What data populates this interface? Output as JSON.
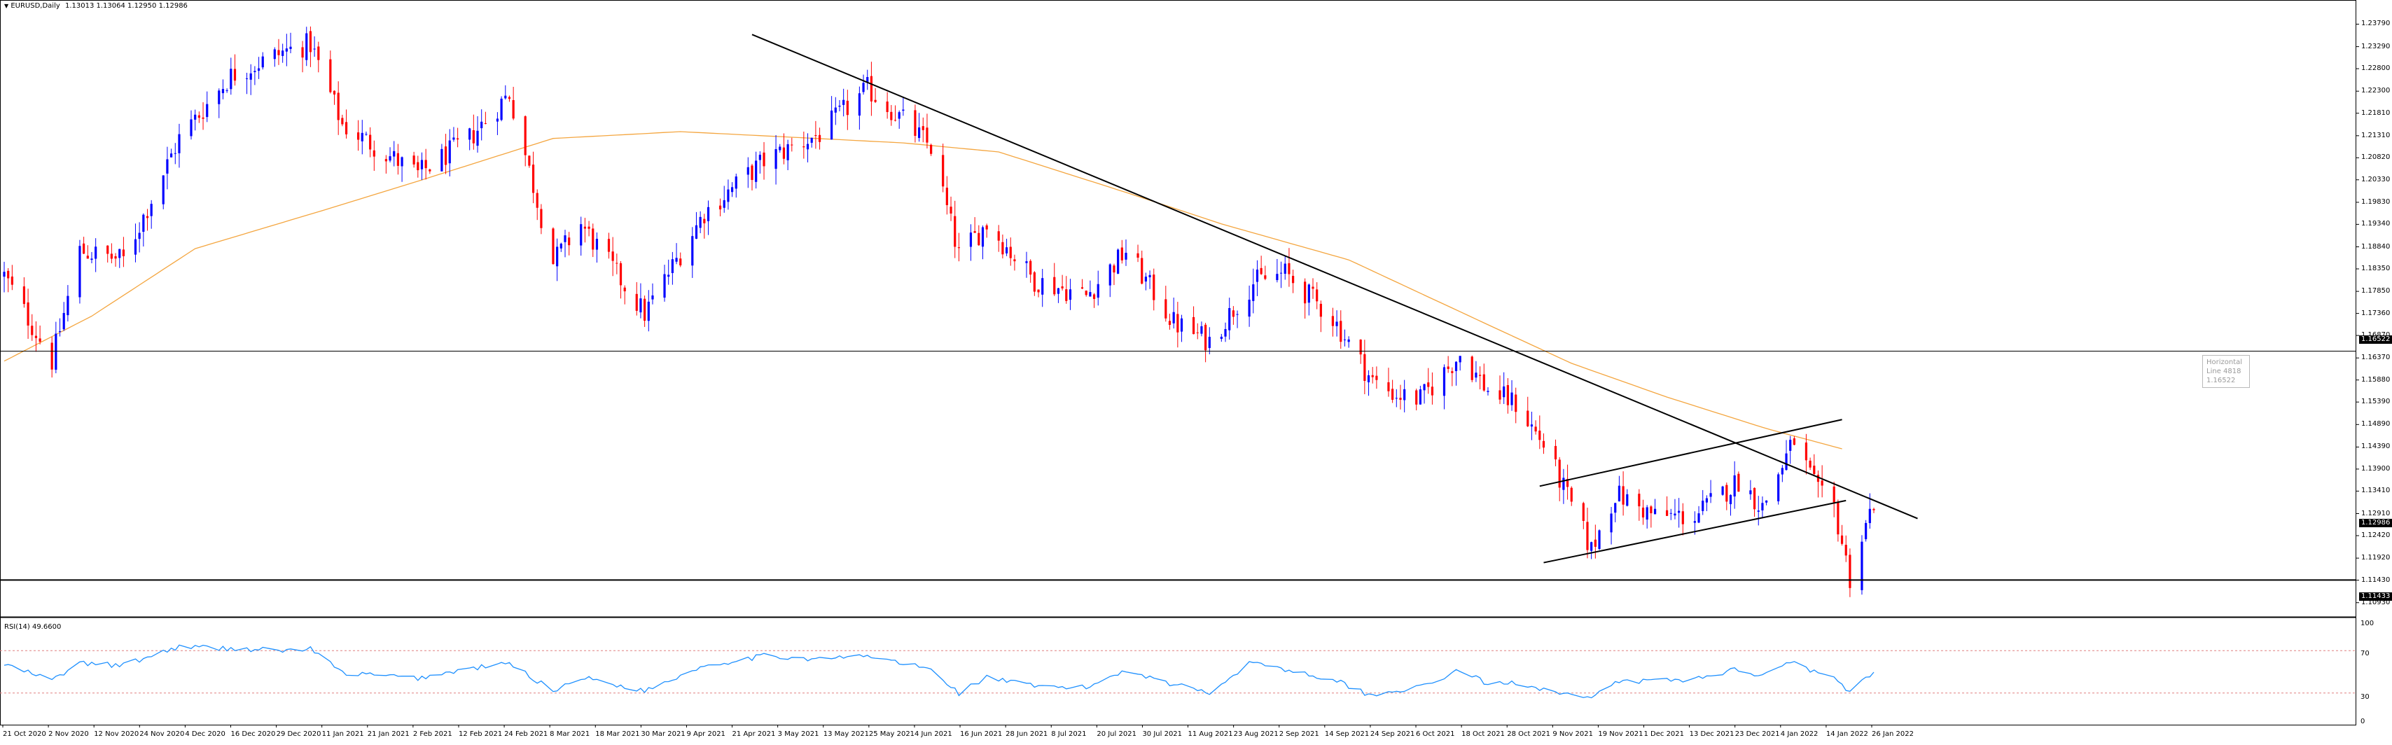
{
  "header": {
    "symbol_menu": "▼",
    "title": "EURUSD,Daily",
    "ohlc": "1.13013 1.13064 1.12950 1.12986"
  },
  "price_axis": {
    "labels": [
      "1.23790",
      "1.23290",
      "1.22800",
      "1.22300",
      "1.21810",
      "1.21310",
      "1.20820",
      "1.20330",
      "1.19830",
      "1.19340",
      "1.18840",
      "1.18350",
      "1.17850",
      "1.17360",
      "1.16870",
      "1.16370",
      "1.15880",
      "1.15390",
      "1.14890",
      "1.14390",
      "1.13900",
      "1.13410",
      "1.12910",
      "1.12420",
      "1.11920",
      "1.11430",
      "1.10930"
    ],
    "hline_upper_tag": "1.16522",
    "current_price_tag": "1.12986",
    "hline_lower_tag": "1.11433"
  },
  "rsi_panel": {
    "title": "RSI(14) 49.6600",
    "axis_labels": {
      "top": "100",
      "upper": "70",
      "lower": "30",
      "bottom": "0"
    }
  },
  "time_axis": {
    "labels": [
      "21 Oct 2020",
      "2 Nov 2020",
      "12 Nov 2020",
      "24 Nov 2020",
      "4 Dec 2020",
      "16 Dec 2020",
      "29 Dec 2020",
      "11 Jan 2021",
      "21 Jan 2021",
      "2 Feb 2021",
      "12 Feb 2021",
      "24 Feb 2021",
      "8 Mar 2021",
      "18 Mar 2021",
      "30 Mar 2021",
      "9 Apr 2021",
      "21 Apr 2021",
      "3 May 2021",
      "13 May 2021",
      "25 May 2021",
      "4 Jun 2021",
      "16 Jun 2021",
      "28 Jun 2021",
      "8 Jul 2021",
      "20 Jul 2021",
      "30 Jul 2021",
      "11 Aug 2021",
      "23 Aug 2021",
      "2 Sep 2021",
      "14 Sep 2021",
      "24 Sep 2021",
      "6 Oct 2021",
      "18 Oct 2021",
      "28 Oct 2021",
      "9 Nov 2021",
      "19 Nov 2021",
      "1 Dec 2021",
      "13 Dec 2021",
      "23 Dec 2021",
      "4 Jan 2022",
      "14 Jan 2022",
      "26 Jan 2022"
    ]
  },
  "tooltip": {
    "line1": "Horizontal Line 4818",
    "line2": "1.16522"
  },
  "colors": {
    "bull": "#0000ff",
    "bear": "#ff0000",
    "moving_average": "#f4a640",
    "rsi_line": "#1e90ff",
    "rsi_levels": "#e08080",
    "trendlines": "#000000"
  },
  "chart_data": {
    "type": "candlestick",
    "symbol": "EURUSD",
    "timeframe": "Daily",
    "current": {
      "open": 1.13013,
      "high": 1.13064,
      "low": 1.1295,
      "close": 1.12986
    },
    "ylim": [
      1.1063,
      1.2414
    ],
    "horizontal_levels": [
      1.16522,
      1.11433
    ],
    "moving_average_anchors": [
      [
        "2020-10-21",
        1.163
      ],
      [
        "2020-11-12",
        1.173
      ],
      [
        "2020-12-08",
        1.188
      ],
      [
        "2021-01-11",
        1.197
      ],
      [
        "2021-02-02",
        1.203
      ],
      [
        "2021-03-08",
        1.2125
      ],
      [
        "2021-04-09",
        1.214
      ],
      [
        "2021-05-13",
        1.2125
      ],
      [
        "2021-06-04",
        1.2115
      ],
      [
        "2021-06-28",
        1.2095
      ],
      [
        "2021-07-30",
        1.2005
      ],
      [
        "2021-08-23",
        1.1935
      ],
      [
        "2021-09-24",
        1.1855
      ],
      [
        "2021-10-28",
        1.1715
      ],
      [
        "2021-11-19",
        1.1625
      ],
      [
        "2021-12-13",
        1.155
      ],
      [
        "2022-01-07",
        1.148
      ],
      [
        "2022-01-26",
        1.1435
      ]
    ],
    "trendlines": [
      {
        "name": "descending",
        "from": [
          "2021-04-27",
          1.2356
        ],
        "to": [
          "2022-02-14",
          1.128
        ]
      },
      {
        "name": "channel-upper",
        "from": [
          "2021-11-11",
          1.1352
        ],
        "to": [
          "2022-01-26",
          1.15
        ]
      },
      {
        "name": "channel-lower",
        "from": [
          "2021-11-12",
          1.1182
        ],
        "to": [
          "2022-01-27",
          1.132
        ]
      }
    ],
    "anchors": [
      [
        "2020-10-21",
        1.182
      ],
      [
        "2020-11-02",
        1.163
      ],
      [
        "2020-11-09",
        1.1875
      ],
      [
        "2020-11-20",
        1.1855
      ],
      [
        "2020-12-04",
        1.2125
      ],
      [
        "2020-12-17",
        1.2265
      ],
      [
        "2020-12-31",
        1.232
      ],
      [
        "2021-01-06",
        1.2335
      ],
      [
        "2021-01-14",
        1.2155
      ],
      [
        "2021-02-02",
        1.2045
      ],
      [
        "2021-02-15",
        1.2125
      ],
      [
        "2021-02-25",
        1.2225
      ],
      [
        "2021-03-08",
        1.185
      ],
      [
        "2021-03-15",
        1.1935
      ],
      [
        "2021-03-31",
        1.1735
      ],
      [
        "2021-04-15",
        1.196
      ],
      [
        "2021-04-30",
        1.2075
      ],
      [
        "2021-05-14",
        1.2135
      ],
      [
        "2021-05-26",
        1.2235
      ],
      [
        "2021-06-04",
        1.2165
      ],
      [
        "2021-06-11",
        1.2105
      ],
      [
        "2021-06-18",
        1.1865
      ],
      [
        "2021-06-25",
        1.1935
      ],
      [
        "2021-07-07",
        1.181
      ],
      [
        "2021-07-20",
        1.1775
      ],
      [
        "2021-07-30",
        1.1875
      ],
      [
        "2021-08-11",
        1.1715
      ],
      [
        "2021-08-20",
        1.1675
      ],
      [
        "2021-08-31",
        1.1805
      ],
      [
        "2021-09-08",
        1.1825
      ],
      [
        "2021-09-20",
        1.1725
      ],
      [
        "2021-09-30",
        1.1585
      ],
      [
        "2021-10-06",
        1.1555
      ],
      [
        "2021-10-12",
        1.1545
      ],
      [
        "2021-10-22",
        1.1645
      ],
      [
        "2021-10-29",
        1.1565
      ],
      [
        "2021-11-05",
        1.1535
      ],
      [
        "2021-11-12",
        1.1445
      ],
      [
        "2021-11-24",
        1.121
      ],
      [
        "2021-11-30",
        1.1335
      ],
      [
        "2021-12-10",
        1.1285
      ],
      [
        "2021-12-20",
        1.1285
      ],
      [
        "2021-12-31",
        1.1365
      ],
      [
        "2022-01-06",
        1.1305
      ],
      [
        "2022-01-14",
        1.1455
      ],
      [
        "2022-01-20",
        1.1335
      ],
      [
        "2022-01-24",
        1.1305
      ],
      [
        "2022-01-28",
        1.1148
      ],
      [
        "2022-02-02",
        1.1292
      ],
      [
        "2022-02-03",
        1.1299
      ]
    ],
    "rsi_anchors": [
      [
        "2020-10-21",
        57
      ],
      [
        "2020-11-02",
        42
      ],
      [
        "2020-11-09",
        58
      ],
      [
        "2020-11-20",
        56
      ],
      [
        "2020-12-04",
        74
      ],
      [
        "2020-12-17",
        72
      ],
      [
        "2020-12-31",
        70
      ],
      [
        "2021-01-06",
        72
      ],
      [
        "2021-01-14",
        49
      ],
      [
        "2021-02-02",
        44
      ],
      [
        "2021-02-15",
        53
      ],
      [
        "2021-02-25",
        58
      ],
      [
        "2021-03-08",
        32
      ],
      [
        "2021-03-15",
        45
      ],
      [
        "2021-03-31",
        32
      ],
      [
        "2021-04-15",
        56
      ],
      [
        "2021-04-30",
        65
      ],
      [
        "2021-05-14",
        62
      ],
      [
        "2021-05-26",
        65
      ],
      [
        "2021-06-04",
        58
      ],
      [
        "2021-06-11",
        52
      ],
      [
        "2021-06-18",
        30
      ],
      [
        "2021-06-25",
        45
      ],
      [
        "2021-07-07",
        36
      ],
      [
        "2021-07-20",
        35
      ],
      [
        "2021-07-30",
        52
      ],
      [
        "2021-08-11",
        38
      ],
      [
        "2021-08-20",
        31
      ],
      [
        "2021-08-31",
        60
      ],
      [
        "2021-09-08",
        52
      ],
      [
        "2021-09-20",
        43
      ],
      [
        "2021-09-30",
        27
      ],
      [
        "2021-10-06",
        33
      ],
      [
        "2021-10-12",
        35
      ],
      [
        "2021-10-22",
        52
      ],
      [
        "2021-10-29",
        38
      ],
      [
        "2021-11-05",
        40
      ],
      [
        "2021-11-12",
        34
      ],
      [
        "2021-11-24",
        24
      ],
      [
        "2021-11-30",
        40
      ],
      [
        "2021-12-10",
        42
      ],
      [
        "2021-12-20",
        43
      ],
      [
        "2021-12-31",
        53
      ],
      [
        "2022-01-06",
        46
      ],
      [
        "2022-01-14",
        62
      ],
      [
        "2022-01-20",
        47
      ],
      [
        "2022-01-24",
        45
      ],
      [
        "2022-01-28",
        30
      ],
      [
        "2022-02-02",
        47
      ],
      [
        "2022-02-03",
        49.66
      ]
    ],
    "rsi_levels": [
      70,
      30
    ]
  }
}
